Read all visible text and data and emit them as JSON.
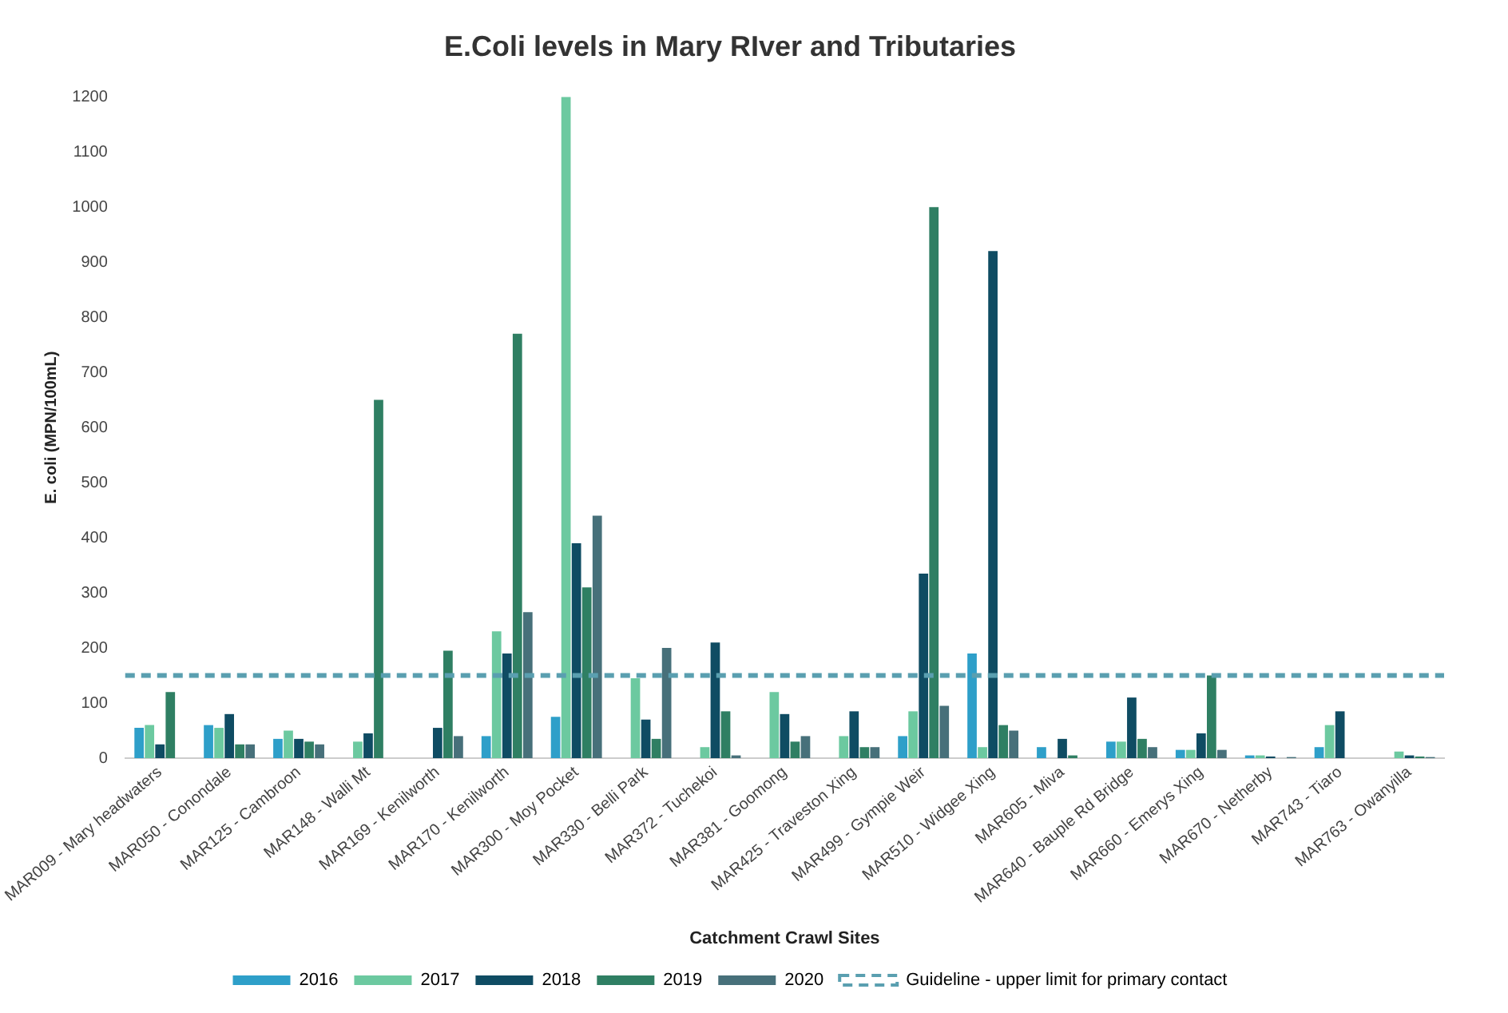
{
  "chart_data": {
    "type": "bar",
    "title": "E.Coli levels in Mary RIver and Tributaries",
    "xlabel": "Catchment Crawl Sites",
    "ylabel": "E. coli (MPN/100mL)",
    "categories": [
      "MAR009 - Mary headwaters",
      "MAR050 - Conondale",
      "MAR125 - Cambroon",
      "MAR148 - Walli Mt",
      "MAR169 - Kenilworth",
      "MAR170 - Kenilworth",
      "MAR300 - Moy Pocket",
      "MAR330 - Belli Park",
      "MAR372 - Tuchekoi",
      "MAR381 - Goomong",
      "MAR425 - Traveston Xing",
      "MAR499 - Gympie Weir",
      "MAR510 - Widgee Xing",
      "MAR605 - Miva",
      "MAR640 - Bauple Rd Bridge",
      "MAR660 - Emerys Xing",
      "MAR670 - Netherby",
      "MAR743 - Tiaro",
      "MAR763 - Owanyilla"
    ],
    "series": [
      {
        "name": "2016",
        "color": "#2e9fc9",
        "values": [
          55,
          60,
          35,
          null,
          null,
          40,
          75,
          null,
          null,
          null,
          null,
          40,
          190,
          20,
          30,
          15,
          5,
          20,
          null
        ]
      },
      {
        "name": "2017",
        "color": "#6cc9a0",
        "values": [
          60,
          55,
          50,
          30,
          null,
          230,
          1200,
          145,
          20,
          120,
          40,
          85,
          20,
          null,
          30,
          15,
          5,
          60,
          12
        ]
      },
      {
        "name": "2018",
        "color": "#0f4c63",
        "values": [
          25,
          80,
          35,
          45,
          55,
          190,
          390,
          70,
          210,
          80,
          85,
          335,
          920,
          35,
          110,
          45,
          3,
          85,
          5
        ]
      },
      {
        "name": "2019",
        "color": "#2f7f63",
        "values": [
          120,
          25,
          30,
          650,
          195,
          770,
          310,
          35,
          85,
          30,
          20,
          1000,
          60,
          5,
          35,
          150,
          null,
          null,
          3
        ]
      },
      {
        "name": "2020",
        "color": "#47707a",
        "values": [
          null,
          25,
          25,
          null,
          40,
          265,
          440,
          200,
          5,
          40,
          20,
          95,
          50,
          null,
          20,
          15,
          2,
          null,
          2
        ]
      }
    ],
    "ylim": [
      0,
      1200
    ],
    "yticks": [
      0,
      100,
      200,
      300,
      400,
      500,
      600,
      700,
      800,
      900,
      1000,
      1100,
      1200
    ],
    "grid": false,
    "legend": "bottom",
    "ref_lines": [
      {
        "axis": "y",
        "value": 150,
        "label": "Guideline - upper limit for primary contact",
        "color": "#5a9fb0",
        "line_style": "dashed"
      }
    ]
  }
}
